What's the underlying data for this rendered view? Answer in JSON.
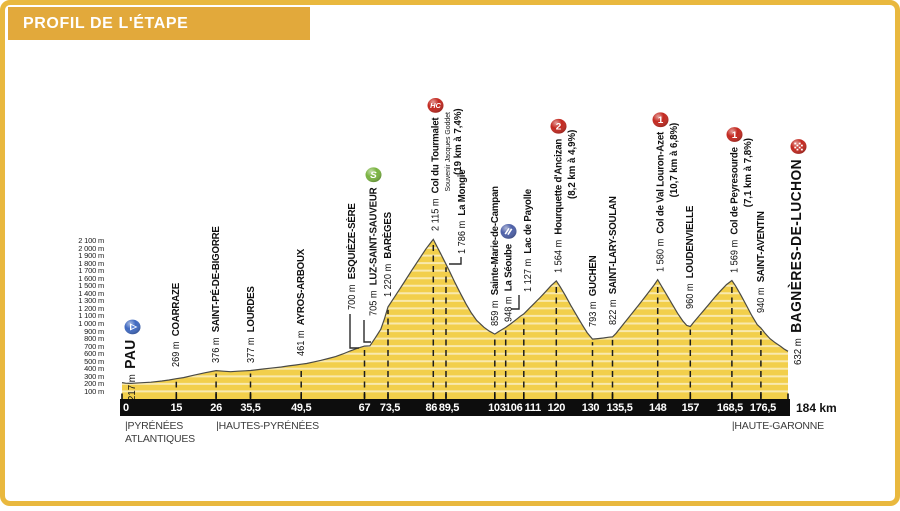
{
  "title": "PROFIL DE L'ÉTAPE",
  "colors": {
    "frame_gold": "#E9B83E",
    "title_bg": "#E2A93B",
    "profile_fill": "#F2CF4B",
    "profile_outline": "#4a4a45",
    "gridline_stripe": "#FFFFFF",
    "bar_black": "#0D0D0D",
    "badge_red": "#C3271E",
    "sprint_green": "#79B33F",
    "start_blue": "#3E68C0",
    "feed_blue": "#4C5FA8"
  },
  "chart_data": {
    "type": "area",
    "title": "Profil de l'étape Pau → Bagnères-de-Luchon",
    "x_unit": "km",
    "y_unit": "m",
    "xlim": [
      0,
      184
    ],
    "ylim": [
      0,
      2100
    ],
    "end_label": "184 km",
    "y_tick_labels": [
      "2 100 m",
      "2 000 m",
      "1 900 m",
      "1 800 m",
      "1 700 m",
      "1 600 m",
      "1 500 m",
      "1 400 m",
      "1 300 m",
      "1 200 m",
      "1 100 m",
      "1 000 m",
      "900 m",
      "800 m",
      "700 m",
      "600 m",
      "500 m",
      "400 m",
      "300 m",
      "200 m",
      "100 m"
    ],
    "x_ticks": [
      {
        "km": 0,
        "label": "0",
        "align": "left"
      },
      {
        "km": 15,
        "label": "15"
      },
      {
        "km": 26,
        "label": "26"
      },
      {
        "km": 35.5,
        "label": "35,5"
      },
      {
        "km": 49.5,
        "label": "49,5"
      },
      {
        "km": 67,
        "label": "67"
      },
      {
        "km": 73.5,
        "label": "73,5",
        "dx": 2
      },
      {
        "km": 86,
        "label": "86",
        "dx": -2
      },
      {
        "km": 89.5,
        "label": "89,5",
        "dx": 3
      },
      {
        "km": 103,
        "label": "103",
        "dx": 2
      },
      {
        "km": 106,
        "label": "106",
        "dx": 8
      },
      {
        "km": 111,
        "label": "111",
        "dx": 9
      },
      {
        "km": 120,
        "label": "120"
      },
      {
        "km": 130,
        "label": "130",
        "dx": -2
      },
      {
        "km": 135.5,
        "label": "135,5",
        "dx": 7
      },
      {
        "km": 148,
        "label": "148"
      },
      {
        "km": 157,
        "label": "157"
      },
      {
        "km": 168.5,
        "label": "168,5",
        "dx": -2
      },
      {
        "km": 176.5,
        "label": "176,5",
        "dx": 2
      }
    ],
    "waypoints": [
      {
        "id": "pau",
        "name": "PAU",
        "km": 0,
        "elevation": 217,
        "elevation_label": "217 m",
        "icon": "start",
        "big": true,
        "dx": 6,
        "lift": -18
      },
      {
        "id": "coarraze",
        "name": "COARRAZE",
        "km": 15,
        "elevation": 269,
        "elevation_label": "269 m",
        "lift": 12
      },
      {
        "id": "saint-pe-de-bigorre",
        "name": "SAINT-PÉ-DE-BIGORRE",
        "km": 26,
        "elevation": 376,
        "elevation_label": "376 m"
      },
      {
        "id": "lourdes",
        "name": "LOURDES",
        "km": 35.5,
        "elevation": 377,
        "elevation_label": "377 m"
      },
      {
        "id": "ayros-arboux",
        "name": "AYROS-ARBOUX",
        "km": 49.5,
        "elevation": 461,
        "elevation_label": "461 m"
      },
      {
        "id": "esquieze-sere",
        "name": "ESQUIÈZE-SÈRE",
        "km": 67,
        "elevation": 700,
        "elevation_label": "700 m",
        "dx": -13,
        "lift": 36,
        "connector": [
          [
            350,
            314
          ],
          [
            350,
            348
          ],
          [
            359,
            348
          ]
        ]
      },
      {
        "id": "luz-saint-sauveur",
        "name": "LUZ-SAINT-SAUVEUR",
        "km": 68.5,
        "elevation": 705,
        "elevation_label": "705 m",
        "icon": "sprint",
        "dx": 1,
        "lift": 30,
        "connector": [
          [
            364,
            320
          ],
          [
            364,
            342
          ],
          [
            371,
            342
          ]
        ]
      },
      {
        "id": "bareges",
        "name": "BARÈGES",
        "km": 73.5,
        "elevation": 1220,
        "elevation_label": "1 220 m",
        "lift": 10
      },
      {
        "id": "col-du-tourmalet",
        "name": "Col du Tourmalet",
        "km": 86,
        "elevation": 2115,
        "elevation_label": "2 115 m",
        "icon": "hc",
        "sublabels": [
          {
            "text": "Souvenir Jacques Goddet",
            "style": "sub"
          },
          {
            "text": "(19 km à 7,4%)",
            "style": "grad"
          }
        ]
      },
      {
        "id": "la-mongie",
        "name": "La Mongie",
        "km": 89.5,
        "elevation": 1786,
        "elevation_label": "1 786 m",
        "dx": 16,
        "lift": 10,
        "connector": [
          [
            461,
            257
          ],
          [
            461,
            264
          ],
          [
            449,
            264
          ]
        ]
      },
      {
        "id": "sainte-marie-de-campan",
        "name": "Sainte-Marie-de-Campan",
        "km": 103,
        "elevation": 859,
        "elevation_label": "859 m"
      },
      {
        "id": "la-seoube",
        "name": "La Séoube",
        "km": 106,
        "elevation": 948,
        "elevation_label": "948 m",
        "icon": "feed",
        "lift": 5
      },
      {
        "id": "lac-de-payolle",
        "name": "Lac de Payolle",
        "km": 111,
        "elevation": 1127,
        "elevation_label": "1 127 m",
        "dx": 4,
        "lift": 22,
        "connector": [
          [
            519,
            295
          ],
          [
            519,
            309
          ],
          [
            511,
            309
          ]
        ]
      },
      {
        "id": "hourquette-d-ancizan",
        "name": "Hourquette d'Ancizan",
        "km": 120,
        "elevation": 1564,
        "elevation_label": "1 564 m",
        "icon": "cat2",
        "sublabels": [
          {
            "text": "(8,2 km à 4,9%)",
            "style": "grad"
          }
        ]
      },
      {
        "id": "guchen",
        "name": "GUCHEN",
        "km": 130,
        "elevation": 793,
        "elevation_label": "793 m",
        "lift": 12
      },
      {
        "id": "saint-lary-soulan",
        "name": "SAINT-LARY-SOULAN",
        "km": 135.5,
        "elevation": 822,
        "elevation_label": "822 m",
        "lift": 12
      },
      {
        "id": "col-de-val-louron-azet",
        "name": "Col de Val Louron-Azet",
        "km": 148,
        "elevation": 1580,
        "elevation_label": "1 580 m",
        "icon": "cat1",
        "sublabels": [
          {
            "text": "(10,7 km à 6,8%)",
            "style": "grad"
          }
        ]
      },
      {
        "id": "loudenvielle",
        "name": "LOUDENVIELLE",
        "km": 157,
        "elevation": 960,
        "elevation_label": "960 m",
        "lift": 18
      },
      {
        "id": "col-de-peyresourde",
        "name": "Col de Peyresourde",
        "km": 168.5,
        "elevation": 1569,
        "elevation_label": "1 569 m",
        "icon": "cat1",
        "sublabels": [
          {
            "text": "(7,1 km à 7,8%)",
            "style": "grad"
          }
        ]
      },
      {
        "id": "saint-aventin",
        "name": "SAINT-AVENTIN",
        "km": 176.5,
        "elevation": 940,
        "elevation_label": "940 m",
        "lift": 15
      },
      {
        "id": "bagneres-de-luchon",
        "name": "BAGNÈRES-DE-LUCHON",
        "km": 184,
        "elevation": 632,
        "elevation_label": "632 m",
        "icon": "finish",
        "big": true,
        "dx": 6,
        "lift": -14
      }
    ],
    "regions": [
      {
        "km": 0,
        "dx": 3,
        "lines": [
          "|PYRÉNÉES",
          "ATLANTIQUES"
        ]
      },
      {
        "km": 26,
        "dx": 0,
        "lines": [
          "|HAUTES-PYRÉNÉES"
        ]
      },
      {
        "km": 168.5,
        "dx": 0,
        "lines": [
          "|HAUTE-GARONNE"
        ]
      }
    ],
    "profile_points": [
      [
        0,
        217
      ],
      [
        1,
        209
      ],
      [
        2.5,
        206
      ],
      [
        5,
        214
      ],
      [
        8,
        222
      ],
      [
        11,
        238
      ],
      [
        13,
        252
      ],
      [
        15,
        269
      ],
      [
        17,
        283
      ],
      [
        20,
        316
      ],
      [
        23,
        348
      ],
      [
        26,
        376
      ],
      [
        28,
        368
      ],
      [
        30,
        362
      ],
      [
        32,
        368
      ],
      [
        34,
        374
      ],
      [
        35.5,
        377
      ],
      [
        37,
        386
      ],
      [
        39,
        398
      ],
      [
        41,
        408
      ],
      [
        44,
        424
      ],
      [
        46,
        438
      ],
      [
        48,
        450
      ],
      [
        49.5,
        461
      ],
      [
        51,
        470
      ],
      [
        53,
        492
      ],
      [
        55,
        512
      ],
      [
        57,
        536
      ],
      [
        59,
        562
      ],
      [
        61,
        596
      ],
      [
        63,
        636
      ],
      [
        65,
        672
      ],
      [
        67,
        700
      ],
      [
        68.5,
        705
      ],
      [
        70,
        812
      ],
      [
        71.5,
        925
      ],
      [
        72.5,
        1060
      ],
      [
        73.5,
        1220
      ],
      [
        75,
        1330
      ],
      [
        76.5,
        1440
      ],
      [
        78,
        1550
      ],
      [
        80,
        1700
      ],
      [
        82,
        1845
      ],
      [
        84,
        1990
      ],
      [
        85.5,
        2085
      ],
      [
        86,
        2115
      ],
      [
        86.8,
        2040
      ],
      [
        88,
        1930
      ],
      [
        89.5,
        1786
      ],
      [
        90.5,
        1690
      ],
      [
        92,
        1540
      ],
      [
        93.5,
        1400
      ],
      [
        95,
        1262
      ],
      [
        96.5,
        1140
      ],
      [
        98,
        1040
      ],
      [
        100,
        950
      ],
      [
        101.5,
        898
      ],
      [
        103,
        859
      ],
      [
        104,
        890
      ],
      [
        105,
        920
      ],
      [
        106,
        948
      ],
      [
        107.5,
        1000
      ],
      [
        109,
        1055
      ],
      [
        110,
        1095
      ],
      [
        111,
        1127
      ],
      [
        112.5,
        1200
      ],
      [
        114,
        1270
      ],
      [
        115.5,
        1345
      ],
      [
        117,
        1420
      ],
      [
        118.5,
        1500
      ],
      [
        120,
        1564
      ],
      [
        121,
        1490
      ],
      [
        122.5,
        1370
      ],
      [
        124,
        1240
      ],
      [
        125.5,
        1115
      ],
      [
        127,
        995
      ],
      [
        128.5,
        880
      ],
      [
        130,
        793
      ],
      [
        131.5,
        800
      ],
      [
        133,
        808
      ],
      [
        134.5,
        818
      ],
      [
        135.5,
        822
      ],
      [
        136.5,
        870
      ],
      [
        138,
        960
      ],
      [
        139.5,
        1050
      ],
      [
        141,
        1140
      ],
      [
        142.5,
        1230
      ],
      [
        144,
        1320
      ],
      [
        145.5,
        1415
      ],
      [
        147,
        1510
      ],
      [
        148,
        1580
      ],
      [
        149,
        1500
      ],
      [
        150.5,
        1380
      ],
      [
        152,
        1255
      ],
      [
        153.5,
        1135
      ],
      [
        155,
        1030
      ],
      [
        156,
        975
      ],
      [
        157,
        960
      ],
      [
        158,
        1020
      ],
      [
        159.5,
        1105
      ],
      [
        161,
        1190
      ],
      [
        162.5,
        1275
      ],
      [
        164,
        1360
      ],
      [
        165.5,
        1440
      ],
      [
        167,
        1515
      ],
      [
        168.5,
        1569
      ],
      [
        169.5,
        1500
      ],
      [
        171,
        1375
      ],
      [
        172.5,
        1240
      ],
      [
        174,
        1105
      ],
      [
        175.5,
        985
      ],
      [
        176.5,
        940
      ],
      [
        177.5,
        880
      ],
      [
        179,
        800
      ],
      [
        180.5,
        745
      ],
      [
        182,
        695
      ],
      [
        183,
        660
      ],
      [
        184,
        632
      ]
    ]
  }
}
